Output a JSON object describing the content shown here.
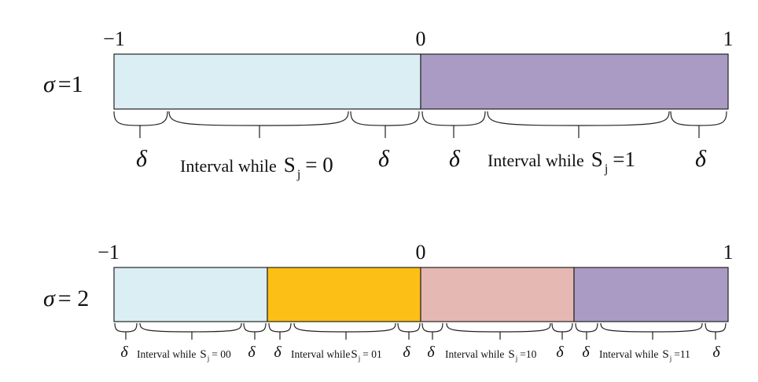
{
  "rows": [
    {
      "id": "row-sigma-1",
      "sigma_symbol": "σ",
      "sigma_value": "=1",
      "ticks": [
        "−1",
        "0",
        "1"
      ],
      "segments": [
        {
          "color": "#dbeef4"
        },
        {
          "color": "#aa9bc4"
        }
      ],
      "delta": "δ",
      "labels": [
        {
          "text": "Interval while",
          "sub_letter": "S",
          "sub_index": "j",
          "eq": "= 0"
        },
        {
          "text": "Interval while",
          "sub_letter": "S",
          "sub_index": "j",
          "eq": "=1"
        }
      ]
    },
    {
      "id": "row-sigma-2",
      "sigma_symbol": "σ",
      "sigma_value": "= 2",
      "ticks": [
        "−1",
        "0",
        "1"
      ],
      "segments": [
        {
          "color": "#dbeef4"
        },
        {
          "color": "#fbbf15"
        },
        {
          "color": "#e6b8b3"
        },
        {
          "color": "#aa9bc4"
        }
      ],
      "delta": "δ",
      "labels": [
        {
          "text": "Interval while",
          "sub_letter": "S",
          "sub_index": "j",
          "eq": "= 00"
        },
        {
          "text": "Interval while",
          "sub_letter": "S",
          "sub_index": "j",
          "eq": "= 01"
        },
        {
          "text": "Interval while",
          "sub_letter": "S",
          "sub_index": "j",
          "eq": "=10"
        },
        {
          "text": "Interval while",
          "sub_letter": "S",
          "sub_index": "j",
          "eq": "=11"
        }
      ]
    }
  ]
}
